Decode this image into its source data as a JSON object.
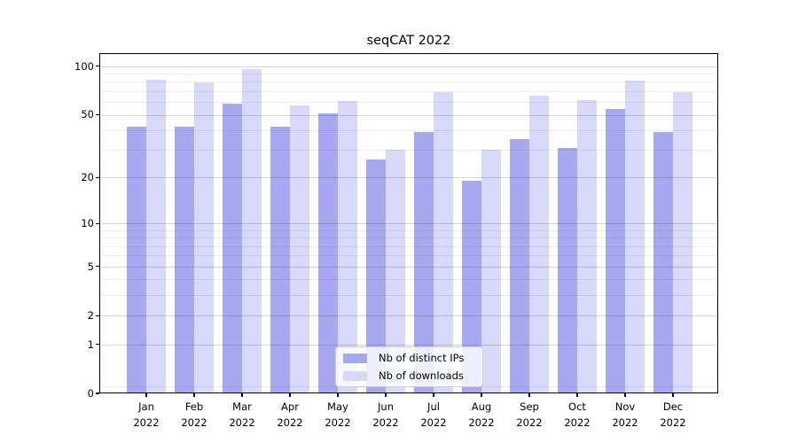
{
  "chart_data": {
    "type": "bar",
    "title": "seqCAT 2022",
    "categories": [
      "Jan",
      "Feb",
      "Mar",
      "Apr",
      "May",
      "Jun",
      "Jul",
      "Aug",
      "Sep",
      "Oct",
      "Nov",
      "Dec"
    ],
    "x_year": "2022",
    "series": [
      {
        "name": "Nb of distinct IPs",
        "color": "#a8a8f0",
        "values": [
          42,
          42,
          59,
          42,
          51,
          26,
          39,
          19,
          35,
          31,
          54,
          39
        ]
      },
      {
        "name": "Nb of downloads",
        "color": "#d8d8f8",
        "values": [
          83,
          79,
          96,
          57,
          61,
          30,
          69,
          30,
          66,
          62,
          82,
          69
        ]
      }
    ],
    "yscale": "log1p",
    "y_ticks": [
      0,
      1,
      2,
      5,
      10,
      20,
      50,
      100
    ],
    "y_minor_ticks": [
      0.1,
      3,
      4,
      6,
      7,
      8,
      9,
      30,
      40,
      60,
      70,
      80,
      90
    ],
    "ylim": [
      0,
      121
    ],
    "grid": true,
    "legend_position": "lower center",
    "legend_entries": [
      "Nb of distinct IPs",
      "Nb of downloads"
    ]
  }
}
